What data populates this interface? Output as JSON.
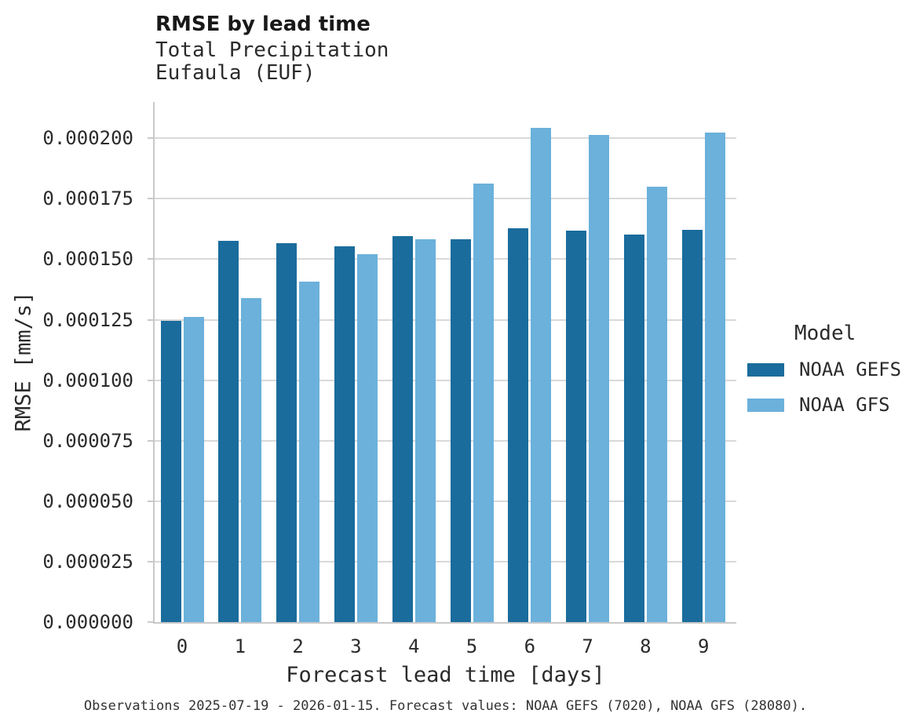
{
  "header": {
    "title": "RMSE by lead time",
    "subtitle_line1": "Total Precipitation",
    "subtitle_line2": "Eufaula (EUF)"
  },
  "legend": {
    "title": "Model"
  },
  "caption": "Observations 2025-07-19 - 2026-01-15. Forecast values: NOAA GEFS (7020), NOAA GFS (28080).",
  "chart_data": {
    "type": "bar",
    "title": "RMSE by lead time",
    "subtitle": "Total Precipitation, Eufaula (EUF)",
    "xlabel": "Forecast lead time [days]",
    "ylabel": "RMSE [mm/s]",
    "categories": [
      "0",
      "1",
      "2",
      "3",
      "4",
      "5",
      "6",
      "7",
      "8",
      "9"
    ],
    "series": [
      {
        "name": "NOAA GEFS",
        "color": "#1a6c9c",
        "values": [
          0.0001245,
          0.0001575,
          0.0001565,
          0.0001552,
          0.0001597,
          0.0001582,
          0.0001627,
          0.0001617,
          0.0001603,
          0.0001622
        ]
      },
      {
        "name": "NOAA GFS",
        "color": "#6bb1db",
        "values": [
          0.0001262,
          0.000134,
          0.0001408,
          0.000152,
          0.0001582,
          0.0001812,
          0.0002042,
          0.0002015,
          0.00018,
          0.0002022
        ]
      }
    ],
    "ylim": [
      0,
      0.000215
    ],
    "yticks": [
      0,
      2.5e-05,
      5e-05,
      7.5e-05,
      0.0001,
      0.000125,
      0.00015,
      0.000175,
      0.0002
    ],
    "ytick_labels": [
      "0.000000",
      "0.000025",
      "0.000050",
      "0.000075",
      "0.000100",
      "0.000125",
      "0.000150",
      "0.000175",
      "0.000200"
    ],
    "grid": true,
    "legend_position": "right"
  }
}
